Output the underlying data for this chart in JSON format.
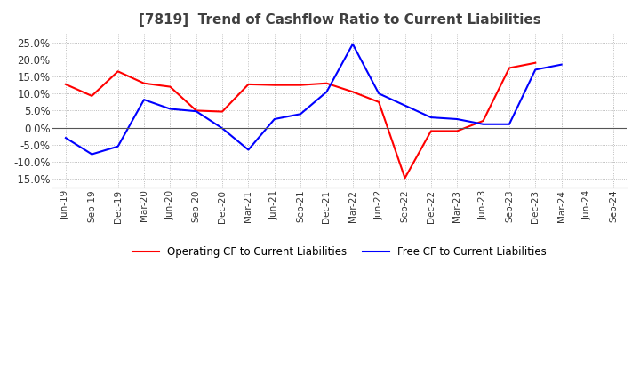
{
  "title": "[7819]  Trend of Cashflow Ratio to Current Liabilities",
  "x_labels": [
    "Jun-19",
    "Sep-19",
    "Dec-19",
    "Mar-20",
    "Jun-20",
    "Sep-20",
    "Dec-20",
    "Mar-21",
    "Jun-21",
    "Sep-21",
    "Dec-21",
    "Mar-22",
    "Jun-22",
    "Sep-22",
    "Dec-22",
    "Mar-23",
    "Jun-23",
    "Sep-23",
    "Dec-23",
    "Mar-24",
    "Jun-24",
    "Sep-24"
  ],
  "operating_cf": [
    0.127,
    0.093,
    0.165,
    0.13,
    0.12,
    0.05,
    0.047,
    0.127,
    0.125,
    0.125,
    0.13,
    0.105,
    0.075,
    -0.148,
    -0.01,
    -0.01,
    0.02,
    0.175,
    0.19,
    null,
    null,
    null
  ],
  "free_cf": [
    -0.03,
    -0.078,
    -0.055,
    0.082,
    0.055,
    0.048,
    -0.002,
    -0.065,
    0.025,
    0.04,
    0.105,
    0.245,
    0.1,
    0.065,
    0.03,
    0.025,
    0.01,
    0.01,
    0.17,
    0.185,
    null,
    null
  ],
  "ylim": [
    -0.175,
    0.275
  ],
  "yticks": [
    -0.15,
    -0.1,
    -0.05,
    0.0,
    0.05,
    0.1,
    0.15,
    0.2,
    0.25
  ],
  "operating_color": "#FF0000",
  "free_color": "#0000FF",
  "grid_color": "#AAAAAA",
  "background_color": "#FFFFFF",
  "title_color": "#404040",
  "title_fontsize": 11,
  "legend_labels": [
    "Operating CF to Current Liabilities",
    "Free CF to Current Liabilities"
  ]
}
